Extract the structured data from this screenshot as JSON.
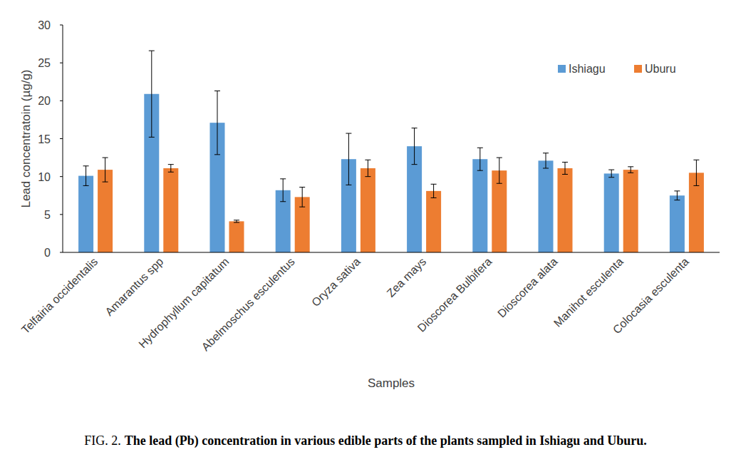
{
  "chart_data": {
    "type": "bar",
    "figure_label": "FIG. 2.",
    "title": "The lead (Pb) concentration in various edible parts of the plants sampled in Ishiagu and Uburu.",
    "x_label": "Samples",
    "y_label": "Lead concentratoin (µg/g)",
    "categories": [
      "Telfairia occidentalis",
      "Amarantus spp",
      "Hydrophyllum capitatum",
      "Abelmoschus esculentus",
      "Oryza sativa",
      "Zea mays",
      "Dioscorea Bulbifera",
      "Dioscorea alata",
      "Manihot esculenta",
      "Colocasia esculenta"
    ],
    "series": [
      {
        "name": "Ishiagu",
        "color": "#5b9bd5",
        "values": [
          10.1,
          20.9,
          17.1,
          8.2,
          12.3,
          14.0,
          12.3,
          12.1,
          10.4,
          7.5
        ],
        "errors": [
          1.3,
          5.7,
          4.2,
          1.5,
          3.4,
          2.4,
          1.5,
          1.0,
          0.5,
          0.6
        ]
      },
      {
        "name": "Uburu",
        "color": "#ed7d31",
        "values": [
          10.9,
          11.1,
          4.1,
          7.3,
          11.1,
          8.1,
          10.8,
          11.1,
          10.9,
          10.5
        ],
        "errors": [
          1.6,
          0.5,
          0.15,
          1.3,
          1.1,
          0.9,
          1.7,
          0.8,
          0.4,
          1.7
        ]
      }
    ],
    "ylim": [
      0,
      30
    ],
    "yticks": [
      0,
      5,
      10,
      15,
      20,
      25,
      30
    ],
    "grid": false,
    "legend": "top-right"
  }
}
